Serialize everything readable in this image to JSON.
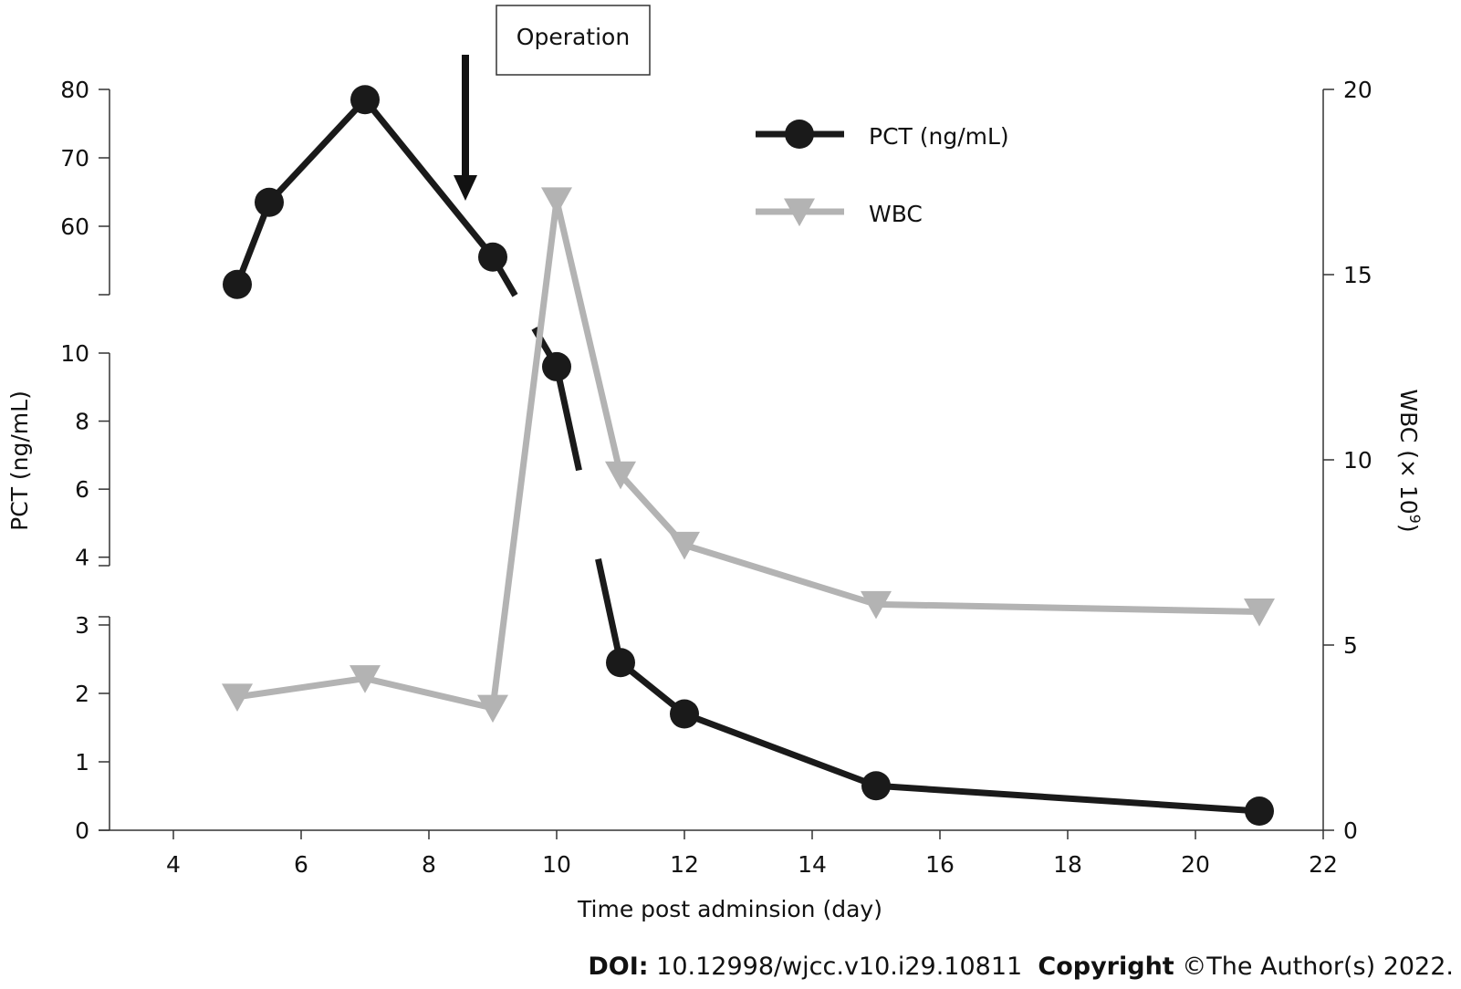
{
  "chart_data": {
    "type": "line",
    "annotation": "Operation",
    "xlabel": "Time post adminsion (day)",
    "ylabel_left": "PCT (ng/mL)",
    "ylabel_right": "WBC (× 10",
    "ylabel_right_sup": "9",
    "ylabel_right_end": ")",
    "xlim": [
      3,
      22
    ],
    "x_ticks": [
      4,
      6,
      8,
      10,
      12,
      14,
      16,
      18,
      20,
      22
    ],
    "left_axis_segments": [
      {
        "range": [
          0,
          3
        ],
        "ticks": [
          0,
          1,
          2,
          3
        ]
      },
      {
        "range": [
          3,
          10
        ],
        "ticks": [
          4,
          6,
          8,
          10
        ]
      },
      {
        "range": [
          50,
          80
        ],
        "ticks": [
          60,
          70,
          80
        ]
      }
    ],
    "right_axis": {
      "range": [
        0,
        20
      ],
      "ticks": [
        0,
        5,
        10,
        15,
        20
      ]
    },
    "series": [
      {
        "name": "PCT (ng/mL)",
        "axis": "left",
        "color": "#1a1a1a",
        "marker": "circle",
        "x": [
          5,
          5.5,
          7,
          9,
          10,
          11,
          12,
          15,
          21
        ],
        "y": [
          51.5,
          63.5,
          78.5,
          55.5,
          9.6,
          2.45,
          1.7,
          0.65,
          0.28
        ]
      },
      {
        "name": "WBC",
        "axis": "right",
        "color": "#b3b3b3",
        "marker": "triangle-down",
        "x": [
          5,
          7,
          9,
          10,
          11,
          12,
          15,
          21
        ],
        "y": [
          3.6,
          4.1,
          3.3,
          17.0,
          9.6,
          7.7,
          6.1,
          5.9
        ]
      }
    ]
  },
  "footer": {
    "doi_label": "DOI:",
    "doi_value": " 10.12998/wjcc.v10.i29.10811",
    "copyright_label": "Copyright",
    "copyright_value": " ©The Author(s) 2022."
  }
}
